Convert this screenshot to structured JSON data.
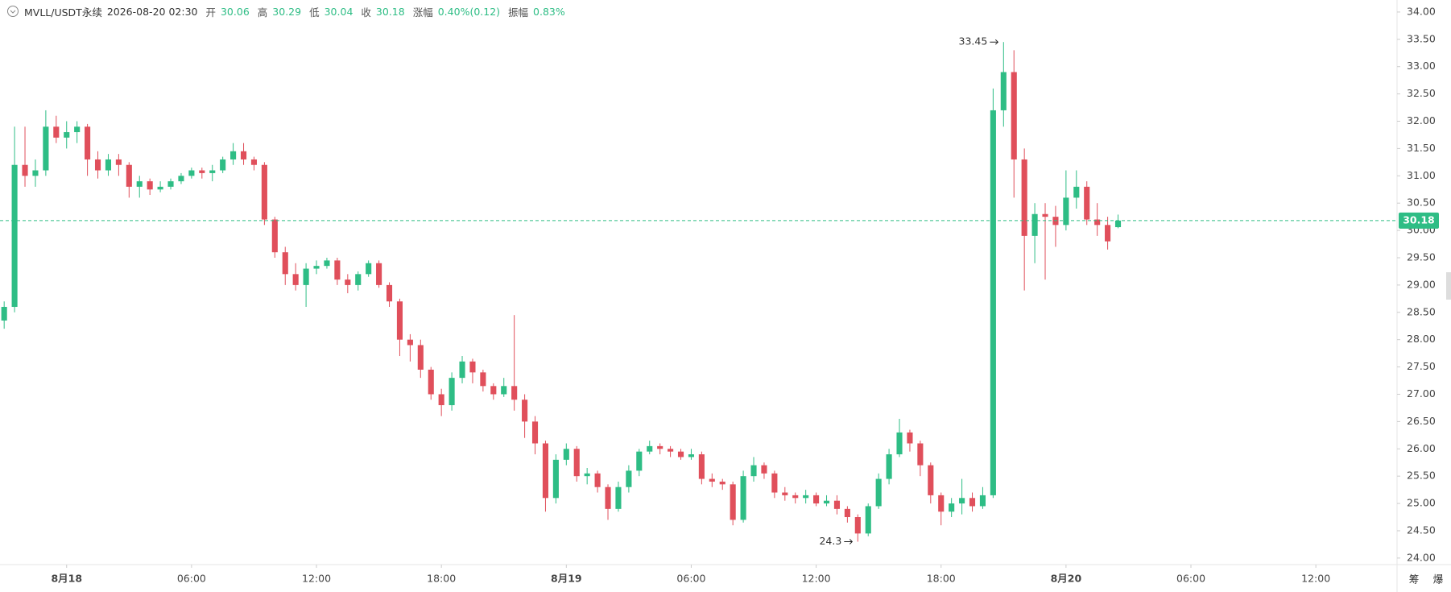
{
  "chart_data": {
    "type": "candlestick",
    "title": "MVLL/USDT永续",
    "subtitle": "2026-08-20 02:30",
    "info": [
      {
        "label": "开",
        "value": "30.06"
      },
      {
        "label": "高",
        "value": "30.29"
      },
      {
        "label": "低",
        "value": "30.04"
      },
      {
        "label": "收",
        "value": "30.18"
      },
      {
        "label": "涨幅",
        "value": "0.40%(0.12)"
      },
      {
        "label": "振幅",
        "value": "0.83%"
      }
    ],
    "up_color": "#2ebd85",
    "down_color": "#e04f5b",
    "last_price_color": "#2ebd85",
    "xlim": [
      -0.4,
      133.8
    ],
    "xticks": [
      {
        "value": 6,
        "label": "8月18"
      },
      {
        "value": 18,
        "label": "06:00"
      },
      {
        "value": 30,
        "label": "12:00"
      },
      {
        "value": 42,
        "label": "18:00"
      },
      {
        "value": 54,
        "label": "8月19"
      },
      {
        "value": 66,
        "label": "06:00"
      },
      {
        "value": 78,
        "label": "12:00"
      },
      {
        "value": 90,
        "label": "18:00"
      },
      {
        "value": 102,
        "label": "8月20"
      },
      {
        "value": 114,
        "label": "06:00"
      },
      {
        "value": 126,
        "label": "12:00"
      }
    ],
    "ylim": [
      23.88,
      34.22
    ],
    "yticks": [
      {
        "value": 24,
        "label": "24.00"
      },
      {
        "value": 24.5,
        "label": "24.50"
      },
      {
        "value": 25,
        "label": "25.00"
      },
      {
        "value": 25.5,
        "label": "25.50"
      },
      {
        "value": 26,
        "label": "26.00"
      },
      {
        "value": 26.5,
        "label": "26.50"
      },
      {
        "value": 27,
        "label": "27.00"
      },
      {
        "value": 27.5,
        "label": "27.50"
      },
      {
        "value": 28,
        "label": "28.00"
      },
      {
        "value": 28.5,
        "label": "28.50"
      },
      {
        "value": 29,
        "label": "29.00"
      },
      {
        "value": 29.5,
        "label": "29.50"
      },
      {
        "value": 30,
        "label": "30.00"
      },
      {
        "value": 30.5,
        "label": "30.50"
      },
      {
        "value": 31,
        "label": "31.00"
      },
      {
        "value": 31.5,
        "label": "31.50"
      },
      {
        "value": 32,
        "label": "32.00"
      },
      {
        "value": 32.5,
        "label": "32.50"
      },
      {
        "value": 33,
        "label": "33.00"
      },
      {
        "value": 33.5,
        "label": "33.50"
      },
      {
        "value": 34,
        "label": "34.00"
      }
    ],
    "open": [
      28.35,
      28.6,
      31.2,
      31.0,
      31.1,
      31.9,
      31.7,
      31.8,
      31.9,
      31.3,
      31.1,
      31.3,
      31.2,
      30.8,
      30.9,
      30.75,
      30.8,
      30.9,
      31.0,
      31.1,
      31.05,
      31.1,
      31.3,
      31.45,
      31.3,
      31.2,
      30.2,
      29.6,
      29.2,
      29.0,
      29.3,
      29.35,
      29.45,
      29.1,
      29.0,
      29.2,
      29.4,
      29.0,
      28.7,
      28.0,
      27.9,
      27.45,
      27.0,
      26.8,
      27.3,
      27.6,
      27.4,
      27.15,
      27.0,
      27.15,
      26.9,
      26.5,
      26.1,
      25.1,
      25.8,
      26.0,
      25.5,
      25.55,
      25.3,
      24.9,
      25.3,
      25.6,
      25.95,
      26.05,
      26.0,
      25.95,
      25.85,
      25.9,
      25.45,
      25.4,
      25.35,
      24.7,
      25.5,
      25.7,
      25.55,
      25.2,
      25.15,
      25.1,
      25.15,
      25.0,
      25.05,
      24.9,
      24.75,
      24.45,
      24.95,
      25.45,
      25.9,
      26.3,
      26.1,
      25.7,
      25.15,
      24.85,
      25.0,
      25.1,
      24.95,
      25.15,
      32.2,
      32.9,
      31.3,
      29.9,
      30.3,
      30.25,
      30.1,
      30.6,
      30.8,
      30.2,
      30.1,
      30.06
    ],
    "high": [
      28.7,
      31.9,
      31.9,
      31.3,
      32.2,
      32.1,
      32.0,
      32.0,
      31.95,
      31.45,
      31.4,
      31.4,
      31.25,
      31.0,
      30.95,
      30.9,
      30.95,
      31.05,
      31.15,
      31.15,
      31.2,
      31.35,
      31.6,
      31.6,
      31.35,
      31.25,
      30.25,
      29.7,
      29.4,
      29.4,
      29.45,
      29.5,
      29.5,
      29.2,
      29.25,
      29.45,
      29.45,
      29.05,
      28.75,
      28.1,
      28.0,
      27.5,
      27.1,
      27.4,
      27.7,
      27.65,
      27.45,
      27.2,
      27.3,
      28.45,
      27.0,
      26.6,
      26.15,
      25.9,
      26.1,
      26.05,
      25.65,
      25.6,
      25.35,
      25.4,
      25.7,
      26.0,
      26.15,
      26.1,
      26.05,
      26.0,
      26.0,
      25.95,
      25.55,
      25.45,
      25.4,
      25.6,
      25.85,
      25.75,
      25.6,
      25.3,
      25.2,
      25.25,
      25.2,
      25.15,
      25.15,
      24.95,
      24.8,
      25.0,
      25.55,
      26.0,
      26.55,
      26.35,
      26.15,
      25.75,
      25.2,
      25.1,
      25.45,
      25.2,
      25.3,
      32.6,
      33.45,
      33.3,
      31.5,
      30.5,
      30.5,
      30.45,
      31.1,
      31.1,
      30.9,
      30.5,
      30.25,
      30.29
    ],
    "low": [
      28.2,
      28.5,
      30.8,
      30.8,
      31.0,
      31.6,
      31.5,
      31.6,
      31.0,
      30.95,
      31.0,
      31.0,
      30.6,
      30.6,
      30.65,
      30.7,
      30.75,
      30.85,
      30.95,
      30.95,
      30.9,
      31.05,
      31.2,
      31.2,
      31.1,
      30.1,
      29.5,
      29.0,
      28.9,
      28.6,
      29.2,
      29.3,
      29.0,
      28.85,
      28.9,
      29.15,
      28.95,
      28.6,
      27.7,
      27.6,
      27.3,
      26.9,
      26.6,
      26.7,
      27.2,
      27.2,
      27.05,
      26.9,
      26.95,
      26.7,
      26.2,
      25.9,
      24.85,
      25.0,
      25.7,
      25.4,
      25.35,
      25.2,
      24.7,
      24.85,
      25.2,
      25.5,
      25.9,
      25.9,
      25.85,
      25.8,
      25.8,
      25.35,
      25.3,
      25.25,
      24.6,
      24.65,
      25.4,
      25.45,
      25.1,
      25.05,
      25.0,
      25.0,
      24.95,
      24.95,
      24.8,
      24.65,
      24.3,
      24.4,
      24.9,
      25.35,
      25.85,
      25.95,
      25.5,
      25.0,
      24.6,
      24.75,
      24.8,
      24.85,
      24.9,
      25.1,
      31.9,
      30.6,
      28.9,
      29.4,
      29.1,
      29.7,
      30.0,
      30.4,
      30.1,
      29.9,
      29.65,
      30.04
    ],
    "close": [
      28.6,
      31.2,
      31.0,
      31.1,
      31.9,
      31.7,
      31.8,
      31.9,
      31.3,
      31.1,
      31.3,
      31.2,
      30.8,
      30.9,
      30.75,
      30.8,
      30.9,
      31.0,
      31.1,
      31.05,
      31.1,
      31.3,
      31.45,
      31.3,
      31.2,
      30.2,
      29.6,
      29.2,
      29.0,
      29.3,
      29.35,
      29.45,
      29.1,
      29.0,
      29.2,
      29.4,
      29.0,
      28.7,
      28.0,
      27.9,
      27.45,
      27.0,
      26.8,
      27.3,
      27.6,
      27.4,
      27.15,
      27.0,
      27.15,
      26.9,
      26.5,
      26.1,
      25.1,
      25.8,
      26.0,
      25.5,
      25.55,
      25.3,
      24.9,
      25.3,
      25.6,
      25.95,
      26.05,
      26.0,
      25.95,
      25.85,
      25.9,
      25.45,
      25.4,
      25.35,
      24.7,
      25.5,
      25.7,
      25.55,
      25.2,
      25.15,
      25.1,
      25.15,
      25.0,
      25.05,
      24.9,
      24.75,
      24.45,
      24.95,
      25.45,
      25.9,
      26.3,
      26.1,
      25.7,
      25.15,
      24.85,
      25.0,
      25.1,
      24.95,
      25.15,
      32.2,
      32.9,
      31.3,
      29.9,
      30.3,
      30.25,
      30.1,
      30.6,
      30.8,
      30.2,
      30.1,
      29.8,
      30.18
    ],
    "icons": [
      "筹",
      "爆"
    ]
  }
}
